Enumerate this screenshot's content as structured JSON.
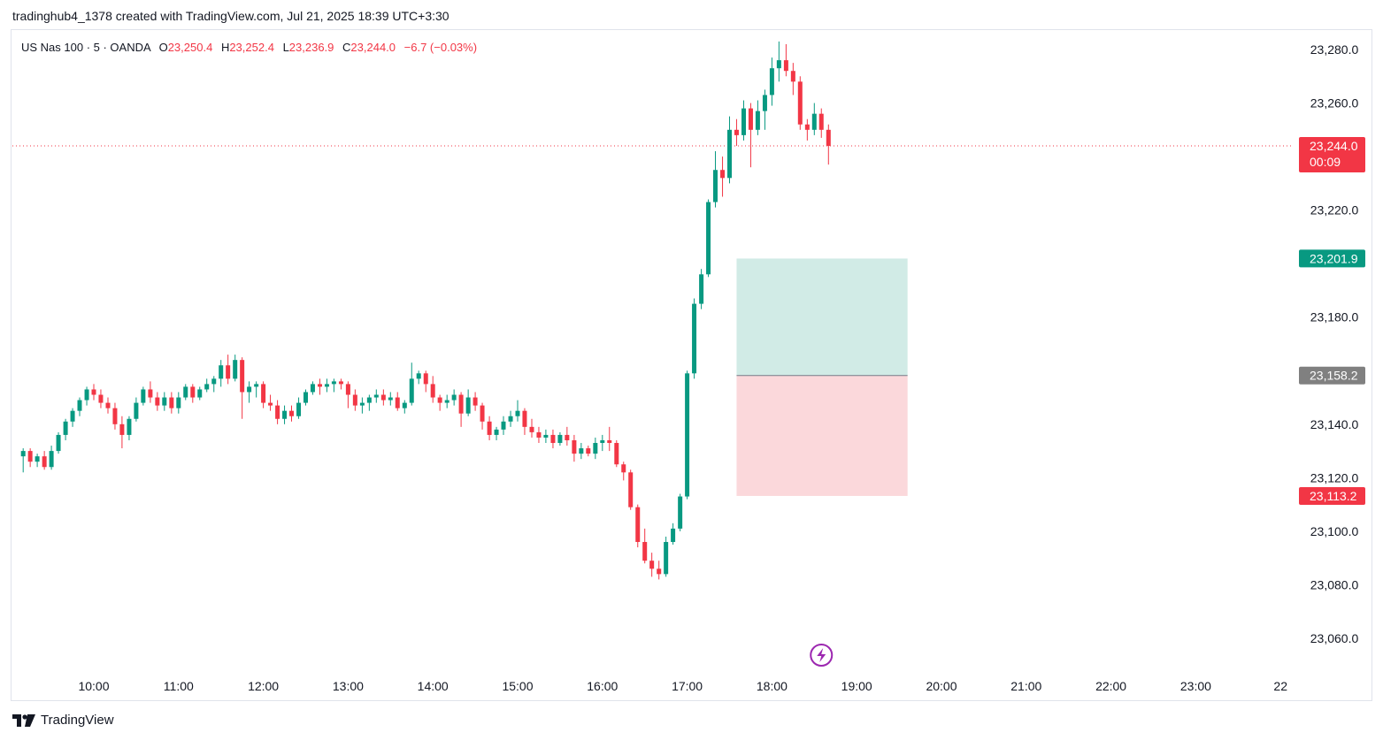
{
  "header": {
    "caption": "tradinghub4_1378 created with TradingView.com, Jul 21, 2025 18:39 UTC+3:30"
  },
  "legend": {
    "symbol": "US Nas 100 · 5 · OANDA",
    "open_label": "O",
    "open": "23,250.4",
    "high_label": "H",
    "high": "23,252.4",
    "low_label": "L",
    "low": "23,236.9",
    "close_label": "C",
    "close": "23,244.0",
    "change": "−6.7 (−0.03%)"
  },
  "footer": {
    "brand": "TradingView",
    "logo_icon": "tradingview-logo-icon"
  },
  "colors": {
    "up": "#089981",
    "down": "#f23645",
    "axis_text": "#131722",
    "grid_border": "#e0e3eb",
    "profit_zone": "#d1ebe6",
    "loss_zone": "#fbd8db",
    "entry_badge": "#808080",
    "flash_icon": "#9c27b0"
  },
  "chart_data": {
    "type": "candlestick",
    "interval_minutes": 5,
    "y_axis": {
      "ticks": [
        23060,
        23080,
        23100,
        23120,
        23140,
        23180,
        23220,
        23260,
        23280
      ],
      "tick_labels": [
        "23,060.0",
        "23,080.0",
        "23,100.0",
        "23,120.0",
        "23,140.0",
        "23,180.0",
        "23,220.0",
        "23,260.0",
        "23,280.0"
      ],
      "ylim": [
        23050,
        23288
      ]
    },
    "x_axis": {
      "ticks": [
        "10:00",
        "11:00",
        "12:00",
        "13:00",
        "14:00",
        "15:00",
        "16:00",
        "17:00",
        "18:00",
        "19:00",
        "20:00",
        "21:00",
        "22:00",
        "23:00",
        "22"
      ],
      "tick_hours": [
        10,
        11,
        12,
        13,
        14,
        15,
        16,
        17,
        18,
        19,
        20,
        21,
        22,
        23,
        24
      ],
      "range_hours": [
        9.15,
        24.1
      ]
    },
    "candles": [
      {
        "t": 9.167,
        "o": 23128,
        "h": 23131,
        "l": 23122,
        "c": 23130
      },
      {
        "t": 9.25,
        "o": 23130,
        "h": 23131,
        "l": 23124,
        "c": 23126
      },
      {
        "t": 9.333,
        "o": 23126,
        "h": 23129,
        "l": 23124,
        "c": 23128
      },
      {
        "t": 9.417,
        "o": 23128,
        "h": 23130,
        "l": 23123,
        "c": 23124
      },
      {
        "t": 9.5,
        "o": 23124,
        "h": 23132,
        "l": 23123,
        "c": 23130
      },
      {
        "t": 9.583,
        "o": 23130,
        "h": 23137,
        "l": 23129,
        "c": 23136
      },
      {
        "t": 9.667,
        "o": 23136,
        "h": 23142,
        "l": 23134,
        "c": 23141
      },
      {
        "t": 9.75,
        "o": 23141,
        "h": 23146,
        "l": 23139,
        "c": 23145
      },
      {
        "t": 9.833,
        "o": 23145,
        "h": 23150,
        "l": 23143,
        "c": 23149
      },
      {
        "t": 9.917,
        "o": 23149,
        "h": 23154,
        "l": 23147,
        "c": 23153
      },
      {
        "t": 10.0,
        "o": 23153,
        "h": 23155,
        "l": 23149,
        "c": 23151
      },
      {
        "t": 10.083,
        "o": 23151,
        "h": 23153,
        "l": 23146,
        "c": 23148
      },
      {
        "t": 10.167,
        "o": 23148,
        "h": 23150,
        "l": 23144,
        "c": 23146
      },
      {
        "t": 10.25,
        "o": 23146,
        "h": 23148,
        "l": 23138,
        "c": 23140
      },
      {
        "t": 10.333,
        "o": 23140,
        "h": 23143,
        "l": 23131,
        "c": 23136
      },
      {
        "t": 10.417,
        "o": 23136,
        "h": 23143,
        "l": 23134,
        "c": 23142
      },
      {
        "t": 10.5,
        "o": 23142,
        "h": 23150,
        "l": 23141,
        "c": 23148
      },
      {
        "t": 10.583,
        "o": 23148,
        "h": 23154,
        "l": 23147,
        "c": 23153
      },
      {
        "t": 10.667,
        "o": 23153,
        "h": 23156,
        "l": 23148,
        "c": 23150
      },
      {
        "t": 10.75,
        "o": 23150,
        "h": 23152,
        "l": 23145,
        "c": 23147
      },
      {
        "t": 10.833,
        "o": 23147,
        "h": 23152,
        "l": 23145,
        "c": 23150
      },
      {
        "t": 10.917,
        "o": 23150,
        "h": 23152,
        "l": 23144,
        "c": 23146
      },
      {
        "t": 11.0,
        "o": 23146,
        "h": 23152,
        "l": 23144,
        "c": 23150
      },
      {
        "t": 11.083,
        "o": 23150,
        "h": 23155,
        "l": 23149,
        "c": 23154
      },
      {
        "t": 11.167,
        "o": 23154,
        "h": 23155,
        "l": 23148,
        "c": 23150
      },
      {
        "t": 11.25,
        "o": 23150,
        "h": 23154,
        "l": 23149,
        "c": 23153
      },
      {
        "t": 11.333,
        "o": 23153,
        "h": 23157,
        "l": 23152,
        "c": 23155
      },
      {
        "t": 11.417,
        "o": 23155,
        "h": 23158,
        "l": 23152,
        "c": 23157
      },
      {
        "t": 11.5,
        "o": 23157,
        "h": 23164,
        "l": 23154,
        "c": 23162
      },
      {
        "t": 11.583,
        "o": 23162,
        "h": 23166,
        "l": 23155,
        "c": 23157
      },
      {
        "t": 11.667,
        "o": 23157,
        "h": 23166,
        "l": 23156,
        "c": 23164
      },
      {
        "t": 11.75,
        "o": 23164,
        "h": 23165,
        "l": 23142,
        "c": 23152
      },
      {
        "t": 11.833,
        "o": 23152,
        "h": 23156,
        "l": 23148,
        "c": 23154
      },
      {
        "t": 11.917,
        "o": 23154,
        "h": 23156,
        "l": 23150,
        "c": 23155
      },
      {
        "t": 12.0,
        "o": 23155,
        "h": 23156,
        "l": 23146,
        "c": 23148
      },
      {
        "t": 12.083,
        "o": 23148,
        "h": 23151,
        "l": 23145,
        "c": 23147
      },
      {
        "t": 12.167,
        "o": 23147,
        "h": 23149,
        "l": 23140,
        "c": 23142
      },
      {
        "t": 12.25,
        "o": 23142,
        "h": 23147,
        "l": 23140,
        "c": 23145
      },
      {
        "t": 12.333,
        "o": 23145,
        "h": 23147,
        "l": 23141,
        "c": 23143
      },
      {
        "t": 12.417,
        "o": 23143,
        "h": 23150,
        "l": 23142,
        "c": 23148
      },
      {
        "t": 12.5,
        "o": 23148,
        "h": 23153,
        "l": 23147,
        "c": 23152
      },
      {
        "t": 12.583,
        "o": 23152,
        "h": 23156,
        "l": 23151,
        "c": 23155
      },
      {
        "t": 12.667,
        "o": 23155,
        "h": 23157,
        "l": 23151,
        "c": 23154
      },
      {
        "t": 12.75,
        "o": 23154,
        "h": 23157,
        "l": 23152,
        "c": 23155
      },
      {
        "t": 12.833,
        "o": 23155,
        "h": 23157,
        "l": 23152,
        "c": 23156
      },
      {
        "t": 12.917,
        "o": 23156,
        "h": 23157,
        "l": 23153,
        "c": 23155
      },
      {
        "t": 13.0,
        "o": 23155,
        "h": 23156,
        "l": 23146,
        "c": 23151
      },
      {
        "t": 13.083,
        "o": 23151,
        "h": 23153,
        "l": 23145,
        "c": 23147
      },
      {
        "t": 13.167,
        "o": 23147,
        "h": 23150,
        "l": 23144,
        "c": 23148
      },
      {
        "t": 13.25,
        "o": 23148,
        "h": 23151,
        "l": 23145,
        "c": 23150
      },
      {
        "t": 13.333,
        "o": 23150,
        "h": 23153,
        "l": 23148,
        "c": 23151
      },
      {
        "t": 13.417,
        "o": 23151,
        "h": 23153,
        "l": 23147,
        "c": 23149
      },
      {
        "t": 13.5,
        "o": 23149,
        "h": 23152,
        "l": 23147,
        "c": 23150
      },
      {
        "t": 13.583,
        "o": 23150,
        "h": 23152,
        "l": 23145,
        "c": 23146
      },
      {
        "t": 13.667,
        "o": 23146,
        "h": 23149,
        "l": 23144,
        "c": 23148
      },
      {
        "t": 13.75,
        "o": 23148,
        "h": 23163,
        "l": 23147,
        "c": 23157
      },
      {
        "t": 13.833,
        "o": 23157,
        "h": 23160,
        "l": 23155,
        "c": 23159
      },
      {
        "t": 13.917,
        "o": 23159,
        "h": 23160,
        "l": 23152,
        "c": 23155
      },
      {
        "t": 14.0,
        "o": 23155,
        "h": 23158,
        "l": 23148,
        "c": 23150
      },
      {
        "t": 14.083,
        "o": 23150,
        "h": 23151,
        "l": 23145,
        "c": 23148
      },
      {
        "t": 14.167,
        "o": 23148,
        "h": 23151,
        "l": 23146,
        "c": 23149
      },
      {
        "t": 14.25,
        "o": 23149,
        "h": 23153,
        "l": 23147,
        "c": 23151
      },
      {
        "t": 14.333,
        "o": 23151,
        "h": 23152,
        "l": 23139,
        "c": 23144
      },
      {
        "t": 14.417,
        "o": 23144,
        "h": 23153,
        "l": 23143,
        "c": 23150
      },
      {
        "t": 14.5,
        "o": 23150,
        "h": 23152,
        "l": 23145,
        "c": 23147
      },
      {
        "t": 14.583,
        "o": 23147,
        "h": 23148,
        "l": 23138,
        "c": 23141
      },
      {
        "t": 14.667,
        "o": 23141,
        "h": 23143,
        "l": 23134,
        "c": 23136
      },
      {
        "t": 14.75,
        "o": 23136,
        "h": 23139,
        "l": 23134,
        "c": 23138
      },
      {
        "t": 14.833,
        "o": 23138,
        "h": 23143,
        "l": 23136,
        "c": 23141
      },
      {
        "t": 14.917,
        "o": 23141,
        "h": 23145,
        "l": 23139,
        "c": 23143
      },
      {
        "t": 15.0,
        "o": 23143,
        "h": 23149,
        "l": 23141,
        "c": 23145
      },
      {
        "t": 15.083,
        "o": 23145,
        "h": 23146,
        "l": 23136,
        "c": 23139
      },
      {
        "t": 15.167,
        "o": 23139,
        "h": 23142,
        "l": 23135,
        "c": 23137
      },
      {
        "t": 15.25,
        "o": 23137,
        "h": 23139,
        "l": 23133,
        "c": 23135
      },
      {
        "t": 15.333,
        "o": 23135,
        "h": 23138,
        "l": 23133,
        "c": 23136
      },
      {
        "t": 15.417,
        "o": 23136,
        "h": 23138,
        "l": 23131,
        "c": 23133
      },
      {
        "t": 15.5,
        "o": 23133,
        "h": 23137,
        "l": 23132,
        "c": 23136
      },
      {
        "t": 15.583,
        "o": 23136,
        "h": 23139,
        "l": 23132,
        "c": 23134
      },
      {
        "t": 15.667,
        "o": 23134,
        "h": 23136,
        "l": 23126,
        "c": 23129
      },
      {
        "t": 15.75,
        "o": 23129,
        "h": 23133,
        "l": 23127,
        "c": 23131
      },
      {
        "t": 15.833,
        "o": 23131,
        "h": 23132,
        "l": 23128,
        "c": 23129
      },
      {
        "t": 15.917,
        "o": 23129,
        "h": 23135,
        "l": 23127,
        "c": 23133
      },
      {
        "t": 16.0,
        "o": 23133,
        "h": 23136,
        "l": 23130,
        "c": 23134
      },
      {
        "t": 16.083,
        "o": 23134,
        "h": 23139,
        "l": 23130,
        "c": 23133
      },
      {
        "t": 16.167,
        "o": 23133,
        "h": 23134,
        "l": 23124,
        "c": 23125
      },
      {
        "t": 16.25,
        "o": 23125,
        "h": 23126,
        "l": 23119,
        "c": 23122
      },
      {
        "t": 16.333,
        "o": 23122,
        "h": 23123,
        "l": 23108,
        "c": 23109
      },
      {
        "t": 16.417,
        "o": 23109,
        "h": 23110,
        "l": 23094,
        "c": 23096
      },
      {
        "t": 16.5,
        "o": 23096,
        "h": 23101,
        "l": 23088,
        "c": 23089
      },
      {
        "t": 16.583,
        "o": 23089,
        "h": 23092,
        "l": 23083,
        "c": 23086
      },
      {
        "t": 16.667,
        "o": 23086,
        "h": 23089,
        "l": 23082,
        "c": 23084
      },
      {
        "t": 16.75,
        "o": 23084,
        "h": 23098,
        "l": 23083,
        "c": 23096
      },
      {
        "t": 16.833,
        "o": 23096,
        "h": 23103,
        "l": 23095,
        "c": 23101
      },
      {
        "t": 16.917,
        "o": 23101,
        "h": 23114,
        "l": 23100,
        "c": 23113
      },
      {
        "t": 17.0,
        "o": 23113,
        "h": 23160,
        "l": 23112,
        "c": 23159
      },
      {
        "t": 17.083,
        "o": 23159,
        "h": 23187,
        "l": 23157,
        "c": 23185
      },
      {
        "t": 17.167,
        "o": 23185,
        "h": 23198,
        "l": 23183,
        "c": 23196
      },
      {
        "t": 17.25,
        "o": 23196,
        "h": 23224,
        "l": 23195,
        "c": 23223
      },
      {
        "t": 17.333,
        "o": 23223,
        "h": 23242,
        "l": 23221,
        "c": 23235
      },
      {
        "t": 17.417,
        "o": 23235,
        "h": 23240,
        "l": 23225,
        "c": 23232
      },
      {
        "t": 17.5,
        "o": 23232,
        "h": 23255,
        "l": 23230,
        "c": 23250
      },
      {
        "t": 17.583,
        "o": 23250,
        "h": 23254,
        "l": 23244,
        "c": 23248
      },
      {
        "t": 17.667,
        "o": 23248,
        "h": 23261,
        "l": 23246,
        "c": 23258
      },
      {
        "t": 17.75,
        "o": 23258,
        "h": 23260,
        "l": 23236,
        "c": 23250
      },
      {
        "t": 17.833,
        "o": 23250,
        "h": 23261,
        "l": 23248,
        "c": 23257
      },
      {
        "t": 17.917,
        "o": 23257,
        "h": 23265,
        "l": 23250,
        "c": 23263
      },
      {
        "t": 18.0,
        "o": 23263,
        "h": 23277,
        "l": 23259,
        "c": 23273
      },
      {
        "t": 18.083,
        "o": 23273,
        "h": 23283,
        "l": 23268,
        "c": 23276
      },
      {
        "t": 18.167,
        "o": 23276,
        "h": 23282,
        "l": 23270,
        "c": 23272
      },
      {
        "t": 18.25,
        "o": 23272,
        "h": 23275,
        "l": 23263,
        "c": 23268
      },
      {
        "t": 18.333,
        "o": 23268,
        "h": 23270,
        "l": 23250,
        "c": 23252
      },
      {
        "t": 18.417,
        "o": 23252,
        "h": 23254,
        "l": 23246,
        "c": 23250
      },
      {
        "t": 18.5,
        "o": 23250,
        "h": 23260,
        "l": 23248,
        "c": 23256
      },
      {
        "t": 18.583,
        "o": 23256,
        "h": 23258,
        "l": 23247,
        "c": 23250
      },
      {
        "t": 18.667,
        "o": 23250,
        "h": 23252,
        "l": 23237,
        "c": 23244
      }
    ],
    "last_price": {
      "value": 23244.0,
      "label": "23,244.0",
      "countdown": "00:09"
    },
    "position": {
      "start_hour": 17.583,
      "end_hour": 19.6,
      "target": 23201.9,
      "target_label": "23,201.9",
      "entry": 23158.2,
      "entry_label": "23,158.2",
      "stop": 23113.2,
      "stop_label": "23,113.2"
    },
    "event_marker": {
      "hour": 18.583,
      "icon": "lightning-icon"
    }
  }
}
